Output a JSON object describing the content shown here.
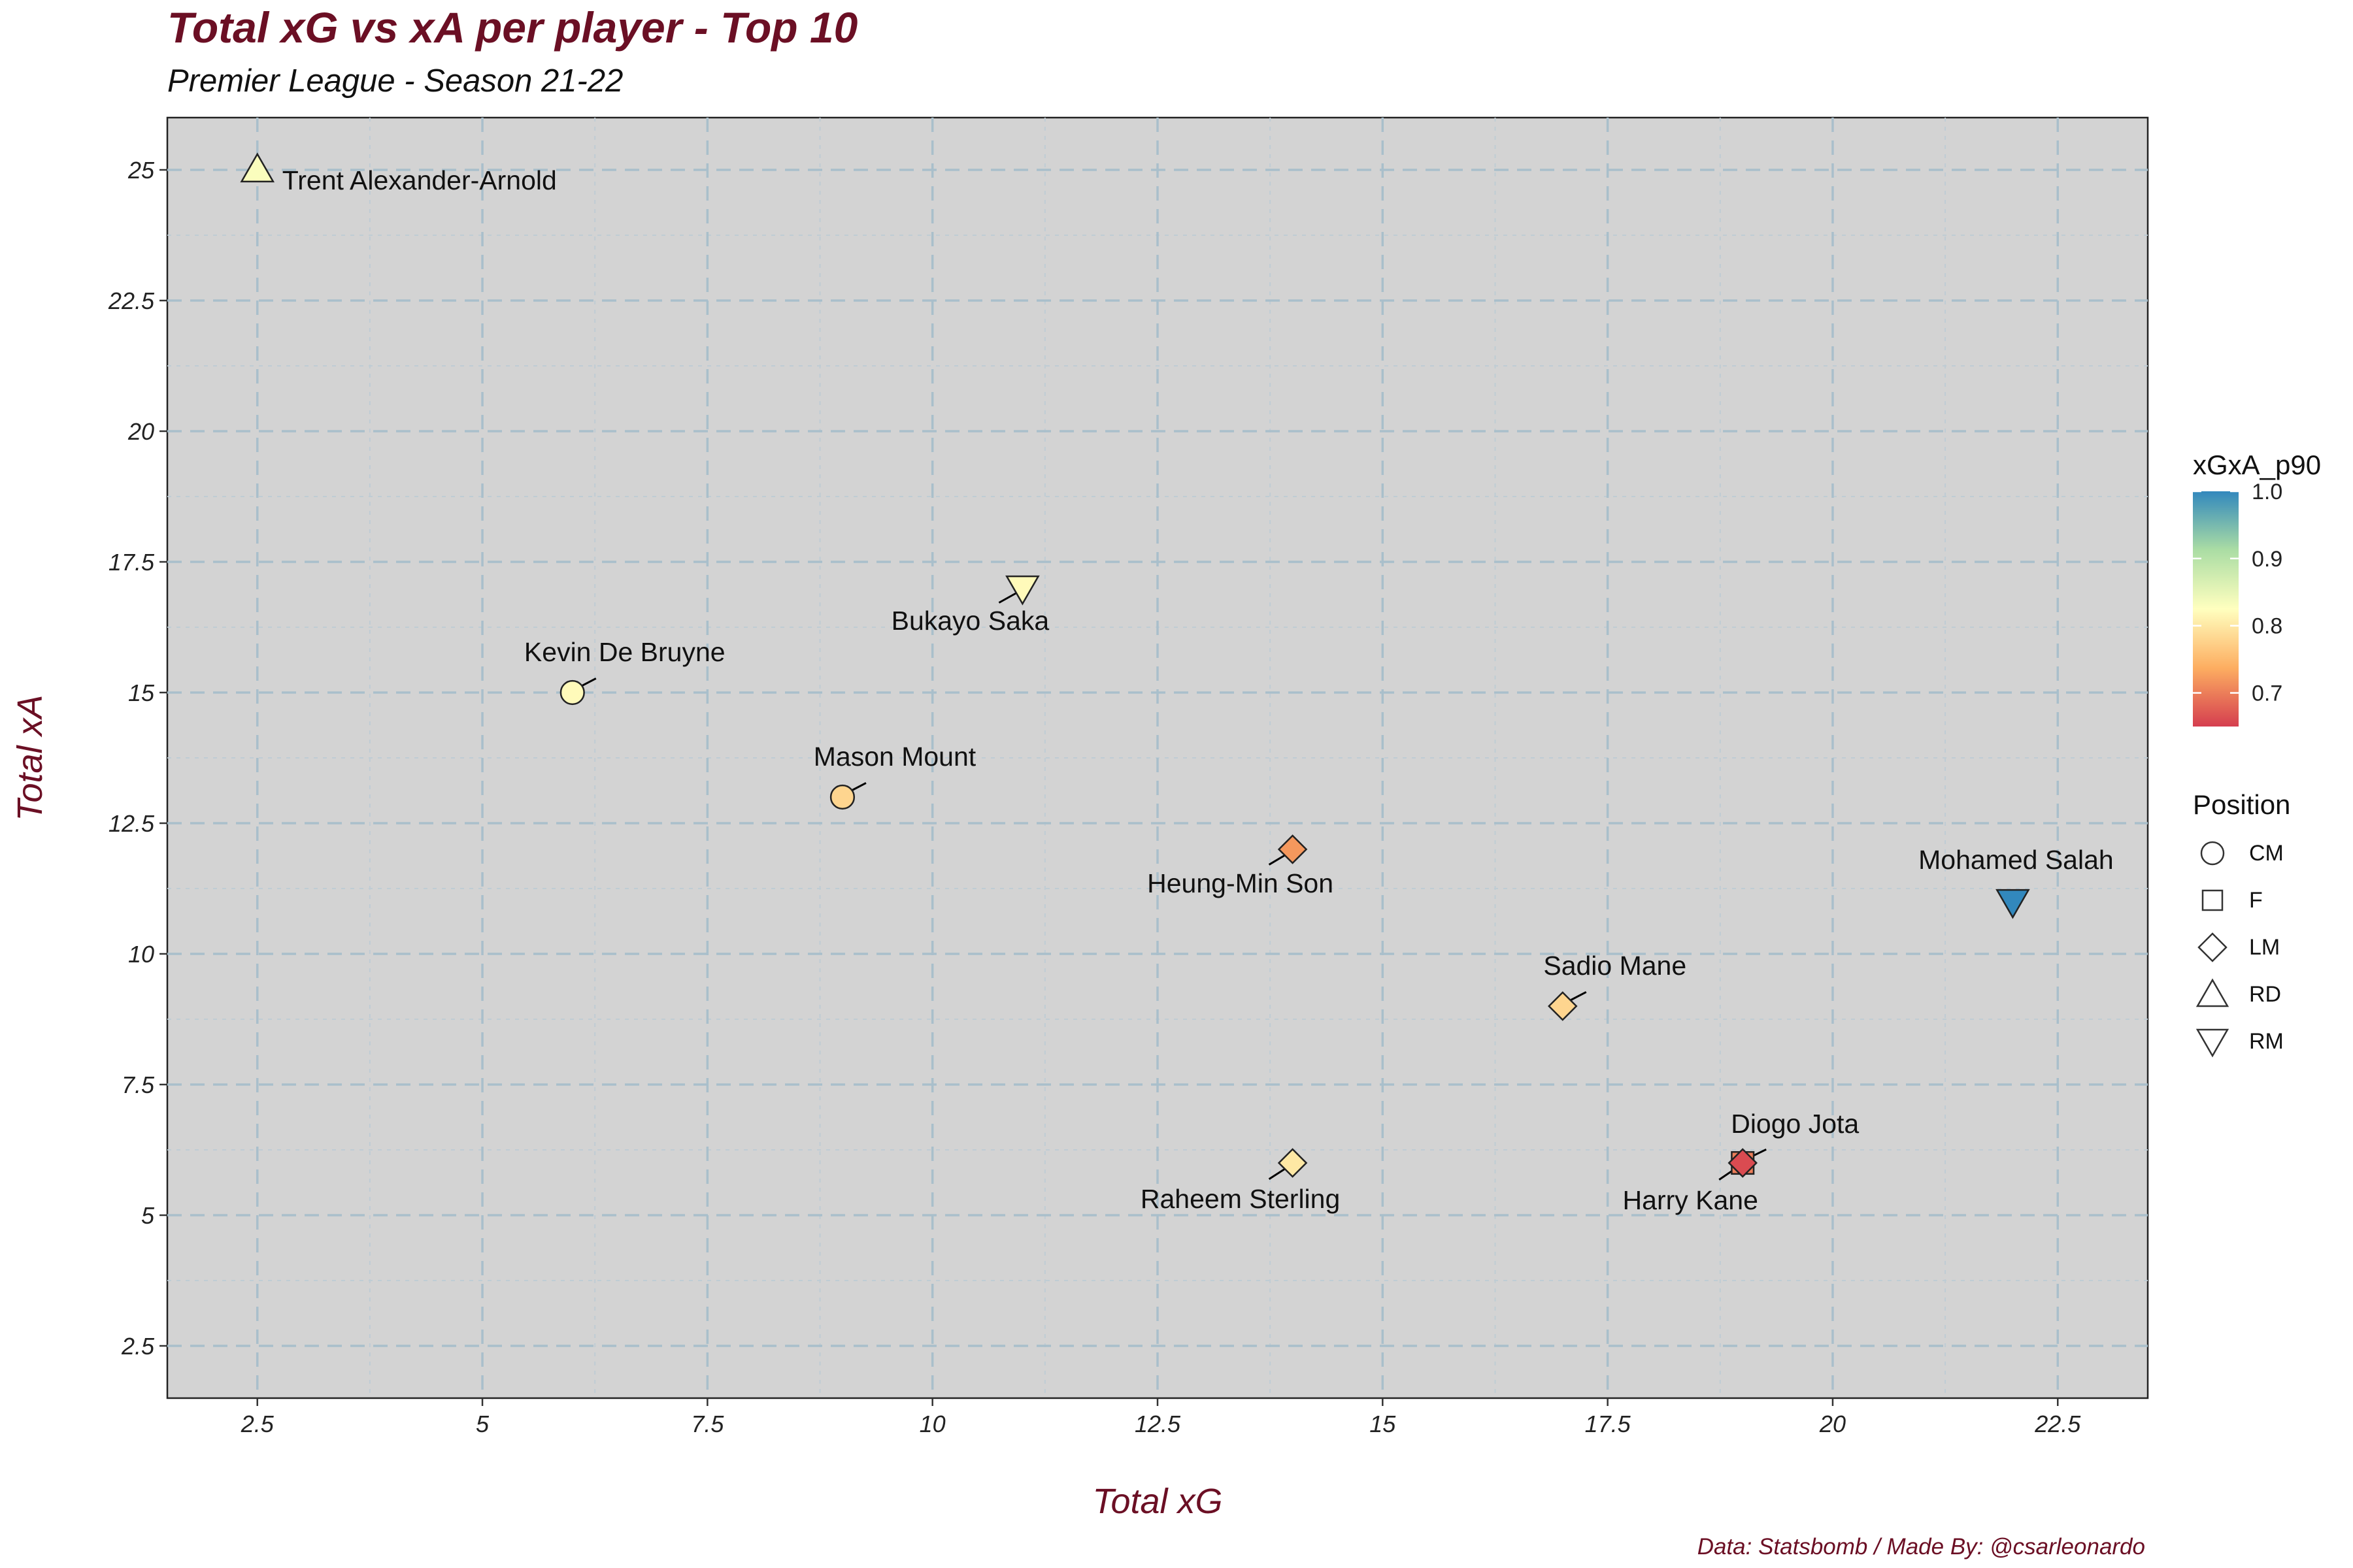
{
  "title": "Total xG vs xA per player - Top 10",
  "subtitle": "Premier League - Season 21-22",
  "caption": "Data: Statsbomb / Made By: @csarleonardo",
  "colors": {
    "title": "#6b0f24",
    "panel_background": "#d3d3d3",
    "major_grid": "#a9bfcb",
    "minor_grid": "#bfccd4",
    "scale_low": "#d53e4f",
    "scale_mid_low": "#fdae61",
    "scale_mid": "#ffffbf",
    "scale_mid_high": "#abdda4",
    "scale_high": "#3288bd"
  },
  "chart_data": {
    "type": "scatter",
    "title": "Total xG vs xA per player - Top 10",
    "subtitle": "Premier League - Season 21-22",
    "xlabel": "Total xG",
    "ylabel": "Total xA",
    "xlim": [
      1.5,
      23.5
    ],
    "ylim": [
      1.5,
      26
    ],
    "x_ticks": [
      2.5,
      5,
      7.5,
      10,
      12.5,
      15,
      17.5,
      20,
      22.5
    ],
    "x_tick_labels": [
      "2.5",
      "5",
      "7.5",
      "10",
      "12.5",
      "15",
      "17.5",
      "20",
      "22.5"
    ],
    "y_ticks": [
      2.5,
      5,
      7.5,
      10,
      12.5,
      15,
      17.5,
      20,
      22.5,
      25
    ],
    "y_tick_labels": [
      "2.5",
      "5",
      "7.5",
      "10",
      "12.5",
      "15",
      "17.5",
      "20",
      "22.5",
      "25"
    ],
    "grid": true,
    "color_legend": {
      "title": "xGxA_p90",
      "ticks": [
        0.7,
        0.8,
        0.9,
        1.0
      ],
      "tick_labels": [
        "0.7",
        "0.8",
        "0.9",
        "1.0"
      ],
      "range": [
        0.65,
        1.0
      ]
    },
    "shape_legend": {
      "title": "Position",
      "entries": [
        {
          "label": "CM",
          "shape": "circle"
        },
        {
          "label": "F",
          "shape": "square"
        },
        {
          "label": "LM",
          "shape": "diamond"
        },
        {
          "label": "RD",
          "shape": "triangle-up"
        },
        {
          "label": "RM",
          "shape": "triangle-down"
        }
      ]
    },
    "legend_position": "right",
    "points": [
      {
        "name": "Trent Alexander-Arnold",
        "x": 2.5,
        "y": 25,
        "position": "RD",
        "xGxA_p90": 0.83
      },
      {
        "name": "Bukayo Saka",
        "x": 11,
        "y": 17,
        "position": "RM",
        "xGxA_p90": 0.82
      },
      {
        "name": "Kevin De Bruyne",
        "x": 6,
        "y": 15,
        "position": "CM",
        "xGxA_p90": 0.82
      },
      {
        "name": "Mason Mount",
        "x": 9,
        "y": 13,
        "position": "CM",
        "xGxA_p90": 0.78
      },
      {
        "name": "Heung-Min Son",
        "x": 14,
        "y": 12,
        "position": "LM",
        "xGxA_p90": 0.72
      },
      {
        "name": "Mohamed Salah",
        "x": 22,
        "y": 11,
        "position": "RM",
        "xGxA_p90": 1.0
      },
      {
        "name": "Sadio Mane",
        "x": 17,
        "y": 9,
        "position": "LM",
        "xGxA_p90": 0.78
      },
      {
        "name": "Raheem Sterling",
        "x": 14,
        "y": 6,
        "position": "LM",
        "xGxA_p90": 0.8
      },
      {
        "name": "Harry Kane",
        "x": 19,
        "y": 6,
        "position": "F",
        "xGxA_p90": 0.7
      },
      {
        "name": "Diogo Jota",
        "x": 19,
        "y": 6,
        "position": "LM",
        "xGxA_p90": 0.66
      }
    ]
  }
}
